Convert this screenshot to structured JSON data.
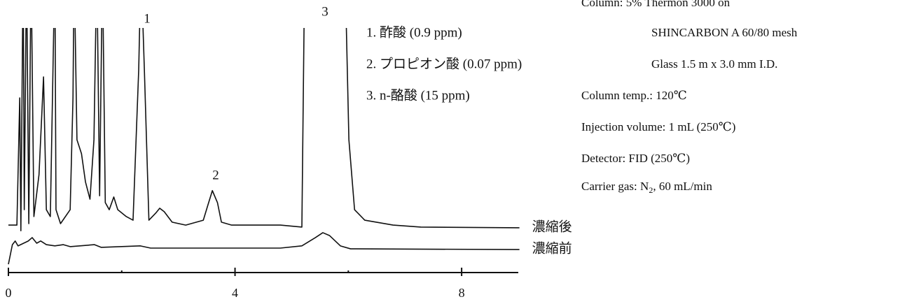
{
  "chart_data": {
    "type": "line",
    "xlim": [
      0,
      9
    ],
    "xticks": [
      0,
      4,
      8
    ],
    "minor_xticks": [
      2,
      6
    ],
    "ylim": [
      0,
      100
    ],
    "series": [
      {
        "name": "濃縮後",
        "color": "#111111",
        "x": [
          0,
          0.15,
          0.2,
          0.22,
          0.26,
          0.28,
          0.32,
          0.36,
          0.4,
          0.45,
          0.54,
          0.62,
          0.67,
          0.74,
          0.82,
          0.84,
          0.92,
          1.09,
          1.14,
          1.16,
          1.21,
          1.29,
          1.36,
          1.44,
          1.51,
          1.56,
          1.61,
          1.66,
          1.71,
          1.78,
          1.86,
          1.93,
          2.08,
          2.2,
          2.3,
          2.34,
          2.4,
          2.48,
          2.6,
          2.67,
          2.75,
          2.89,
          3.13,
          3.44,
          3.52,
          3.6,
          3.69,
          3.76,
          3.94,
          4.8,
          5.18,
          5.23,
          5.94,
          6.01,
          6.11,
          6.29,
          6.79,
          7.28,
          9.02
        ],
        "values": [
          19.4,
          19.4,
          71.4,
          17.1,
          125.7,
          25.7,
          125.7,
          20,
          125.7,
          22.9,
          40,
          80,
          25.7,
          22.9,
          125.7,
          25.7,
          20,
          25.7,
          71.4,
          125.7,
          54.3,
          48.6,
          37.1,
          30,
          54.3,
          125.7,
          31.4,
          125.7,
          28.6,
          25.7,
          30.9,
          25.7,
          22.9,
          21.4,
          82.9,
          125.7,
          82.9,
          21.4,
          24.3,
          26.3,
          24.9,
          20.6,
          19.4,
          21.4,
          27.5,
          33.5,
          28.6,
          20.6,
          19.4,
          19.4,
          18.6,
          125.7,
          125.7,
          54.3,
          25.7,
          21.4,
          19.4,
          18.6,
          18.3
        ]
      },
      {
        "name": "濃縮前",
        "color": "#111111",
        "x": [
          0,
          0.07,
          0.12,
          0.17,
          0.35,
          0.42,
          0.5,
          0.57,
          0.67,
          0.82,
          0.97,
          1.09,
          1.52,
          1.64,
          2.33,
          2.51,
          4.8,
          5.18,
          5.42,
          5.55,
          5.67,
          5.86,
          6.04,
          9.02
        ],
        "values": [
          3.4,
          11.4,
          12.9,
          10.9,
          12.9,
          14.3,
          12,
          12.9,
          11.4,
          10.9,
          11.4,
          10.6,
          11.4,
          10.3,
          10.9,
          10,
          10,
          10.9,
          14.3,
          16.3,
          15.1,
          10.9,
          9.7,
          9.4
        ]
      }
    ],
    "peak_labels": [
      "1",
      "2",
      "3"
    ],
    "peak_list": [
      "1. 酢酸 (0.9 ppm)",
      "2. プロピオン酸 (0.07 ppm)",
      "3. n-酪酸 (15 ppm)"
    ],
    "conditions": [
      "Column: 5% Thermon 3000 on",
      "SHINCARBON A 60/80 mesh",
      "Glass 1.5 m x 3.0 mm I.D.",
      "Column temp.: 120℃",
      "Injection volume: 1 mL (250℃)",
      "Detector: FID (250℃)"
    ],
    "carrier_gas": [
      "Carrier gas: N",
      "2",
      ", 60 mL/min"
    ]
  }
}
